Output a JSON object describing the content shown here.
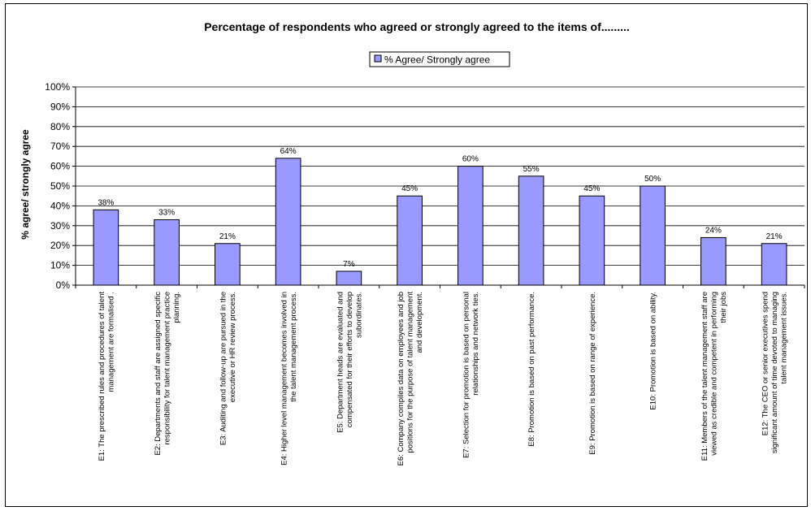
{
  "chart_data": {
    "type": "bar",
    "title": "Percentage of respondents who agreed or strongly agreed to the items of.........",
    "ylabel": "% agree/ strongly agree",
    "xlabel": "",
    "ylim": [
      0,
      100
    ],
    "y_ticks": [
      "0%",
      "10%",
      "20%",
      "30%",
      "40%",
      "50%",
      "60%",
      "70%",
      "80%",
      "90%",
      "100%"
    ],
    "grid": true,
    "legend_position": "top-center",
    "series": [
      {
        "name": "% Agree/ Strongly agree",
        "values": [
          38,
          33,
          21,
          64,
          7,
          45,
          60,
          55,
          45,
          50,
          24,
          21
        ]
      }
    ],
    "data_labels": [
      "38%",
      "33%",
      "21%",
      "64%",
      "7%",
      "45%",
      "60%",
      "55%",
      "45%",
      "50%",
      "24%",
      "21%"
    ],
    "categories": [
      [
        "E1: The prescribed rules and procedures of talent",
        "management are formalised ."
      ],
      [
        "E2: Departments and staff are assigned specific",
        "responsibility for talent management practice",
        "planning."
      ],
      [
        "E3: Auditing and follow-up are pursued in the",
        "executive or HR review process."
      ],
      [
        "E4: Higher level management becomes involved in",
        "the talent management process."
      ],
      [
        "E5: Department heads are evaluated and",
        "compensated for their efforts to develop",
        "subordinates."
      ],
      [
        "E6: Company compiles data on employees and job",
        "positions for the purpose of talent management",
        "and development."
      ],
      [
        "E7: Selection for promotion is based on personal",
        "relationships and network ties."
      ],
      [
        "E8: Promotion is based on past performance."
      ],
      [
        "E9: Promotion is based on range of experience."
      ],
      [
        "E10: Promotion is based on ability."
      ],
      [
        "E11: Members of the talent management staff are",
        "viewed as credible and competent in performing",
        "their jobs"
      ],
      [
        "E12: The CEO or senior executives spend",
        "significant amount of time devoted to managing",
        "talent management issues."
      ]
    ],
    "colors": {
      "bar_fill": "#9999ff",
      "bar_stroke": "#000000",
      "grid": "#000000"
    }
  }
}
